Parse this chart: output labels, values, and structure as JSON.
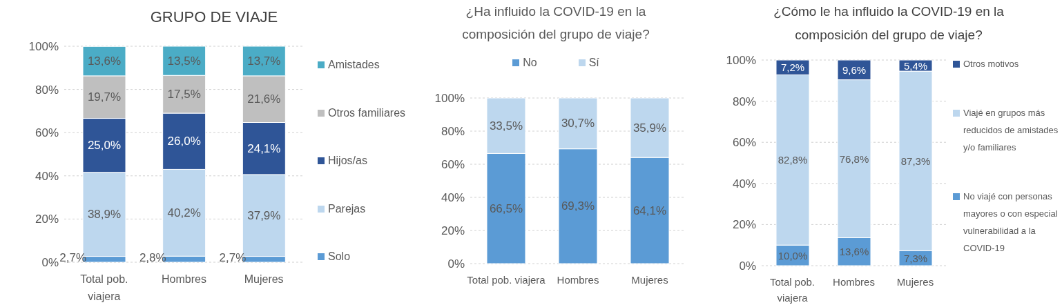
{
  "chart_data": [
    {
      "type": "bar",
      "title": "GRUPO DE VIAJE",
      "categories": [
        "Total pob. viajera",
        "Hombres",
        "Mujeres"
      ],
      "stacked": true,
      "series": [
        {
          "name": "Solo",
          "color": "#5b9bd5",
          "values": [
            2.7,
            2.8,
            2.7
          ],
          "value_labels": [
            "2,7%",
            "2,8%",
            "2,7%"
          ]
        },
        {
          "name": "Parejas",
          "color": "#bdd7ee",
          "values": [
            38.9,
            40.2,
            37.9
          ],
          "value_labels": [
            "38,9%",
            "40,2%",
            "37,9%"
          ]
        },
        {
          "name": "Hijos/as",
          "color": "#2f5597",
          "values": [
            25.0,
            26.0,
            24.1
          ],
          "value_labels": [
            "25,0%",
            "26,0%",
            "24,1%"
          ]
        },
        {
          "name": "Otros familiares",
          "color": "#bfbfbf",
          "values": [
            19.7,
            17.5,
            21.6
          ],
          "value_labels": [
            "19,7%",
            "17,5%",
            "21,6%"
          ]
        },
        {
          "name": "Amistades",
          "color": "#4bacc6",
          "values": [
            13.6,
            13.5,
            13.7
          ],
          "value_labels": [
            "13,6%",
            "13,5%",
            "13,7%"
          ]
        }
      ],
      "ylim": [
        0,
        100
      ],
      "yticks": [
        {
          "value": 0,
          "label": "0%"
        },
        {
          "value": 20,
          "label": "20%"
        },
        {
          "value": 40,
          "label": "40%"
        },
        {
          "value": 60,
          "label": "60%"
        },
        {
          "value": 80,
          "label": "80%"
        },
        {
          "value": 100,
          "label": "100%"
        }
      ],
      "grid": "y",
      "legend": "right"
    },
    {
      "type": "bar",
      "title": "¿Ha influido la COVID-19 en la composición del grupo de viaje?",
      "categories": [
        "Total pob. viajera",
        "Hombres",
        "Mujeres"
      ],
      "stacked": true,
      "series": [
        {
          "name": "No",
          "color": "#5b9bd5",
          "values": [
            66.5,
            69.3,
            64.1
          ],
          "value_labels": [
            "66,5%",
            "69,3%",
            "64,1%"
          ]
        },
        {
          "name": "Sí",
          "color": "#bdd7ee",
          "values": [
            33.5,
            30.7,
            35.9
          ],
          "value_labels": [
            "33,5%",
            "30,7%",
            "35,9%"
          ]
        }
      ],
      "ylim": [
        0,
        100
      ],
      "yticks": [
        {
          "value": 0,
          "label": "0%"
        },
        {
          "value": 20,
          "label": "20%"
        },
        {
          "value": 40,
          "label": "40%"
        },
        {
          "value": 60,
          "label": "60%"
        },
        {
          "value": 80,
          "label": "80%"
        },
        {
          "value": 100,
          "label": "100%"
        }
      ],
      "grid": "y",
      "legend": "top"
    },
    {
      "type": "bar",
      "title": "¿Cómo le ha influido la COVID-19 en la composición del grupo de viaje?",
      "categories": [
        "Total pob. viajera",
        "Hombres",
        "Mujeres"
      ],
      "stacked": true,
      "series": [
        {
          "name": "No viajé con personas mayores o con especial vulnerabilidad a la COVID-19",
          "color": "#5b9bd5",
          "values": [
            10.0,
            13.6,
            7.3
          ],
          "value_labels": [
            "10,0%",
            "13,6%",
            "7,3%"
          ]
        },
        {
          "name": "Viajé en grupos más reducidos de amistades y/o familiares",
          "color": "#bdd7ee",
          "values": [
            82.8,
            76.8,
            87.3
          ],
          "value_labels": [
            "82,8%",
            "76,8%",
            "87,3%"
          ]
        },
        {
          "name": "Otros motivos",
          "color": "#2f5597",
          "values": [
            7.2,
            9.6,
            5.4
          ],
          "value_labels": [
            "7,2%",
            "9,6%",
            "5,4%"
          ]
        }
      ],
      "ylim": [
        0,
        100
      ],
      "yticks": [
        {
          "value": 0,
          "label": "0%"
        },
        {
          "value": 20,
          "label": "20%"
        },
        {
          "value": 40,
          "label": "40%"
        },
        {
          "value": 60,
          "label": "60%"
        },
        {
          "value": 80,
          "label": "80%"
        },
        {
          "value": 100,
          "label": "100%"
        }
      ],
      "grid": "y",
      "legend": "right"
    }
  ]
}
